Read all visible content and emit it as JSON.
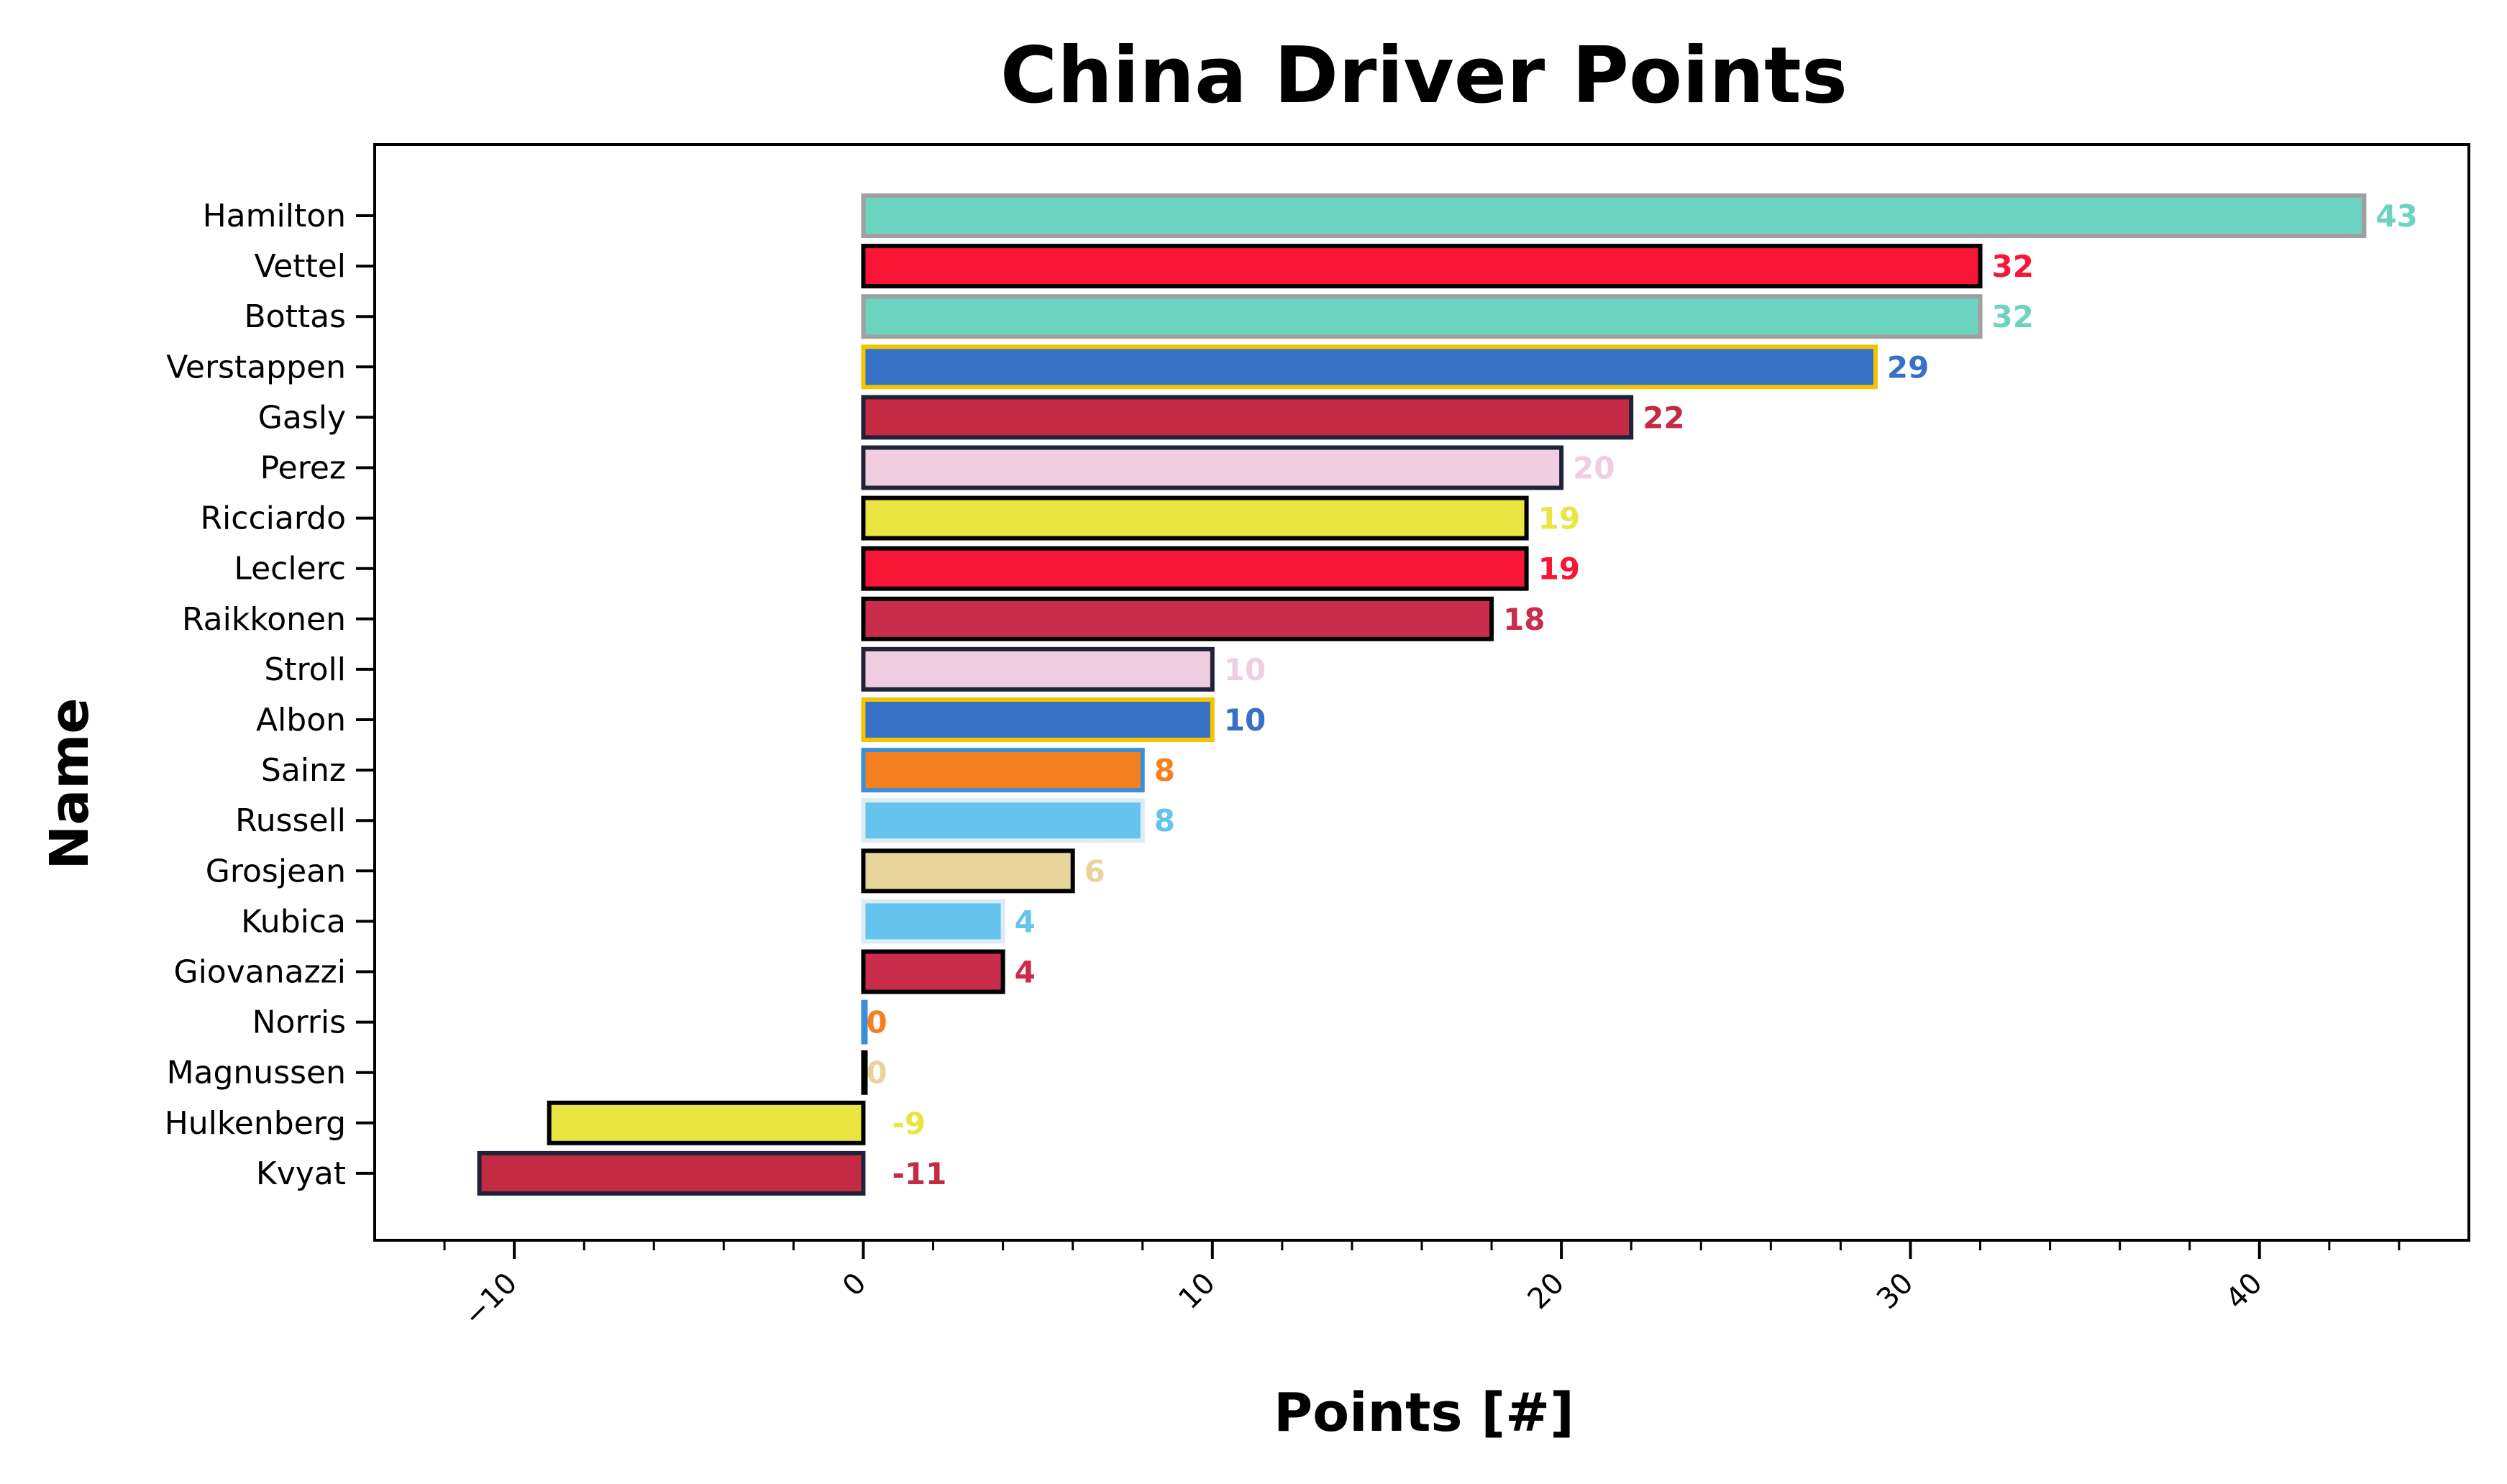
{
  "chart_data": {
    "type": "bar",
    "orientation": "horizontal",
    "title": "China Driver Points",
    "xlabel": "Points [#]",
    "ylabel": "Name",
    "xlim": [
      -14,
      46
    ],
    "xticks": [
      -10,
      0,
      10,
      20,
      30,
      40
    ],
    "xtick_labels": [
      "−10",
      "0",
      "10",
      "20",
      "30",
      "40"
    ],
    "grid": false,
    "categories": [
      "Hamilton",
      "Vettel",
      "Bottas",
      "Verstappen",
      "Gasly",
      "Perez",
      "Ricciardo",
      "Leclerc",
      "Raikkonen",
      "Stroll",
      "Albon",
      "Sainz",
      "Russell",
      "Grosjean",
      "Kubica",
      "Giovanazzi",
      "Norris",
      "Magnussen",
      "Hulkenberg",
      "Kvyat"
    ],
    "values": [
      43,
      32,
      32,
      29,
      22,
      20,
      19,
      19,
      18,
      10,
      10,
      8,
      8,
      6,
      4,
      4,
      0,
      0,
      -9,
      -11
    ],
    "value_labels": [
      "43",
      "32",
      "32",
      "29",
      "22",
      "20",
      "19",
      "19",
      "18",
      "10",
      "10",
      "8",
      "8",
      "6",
      "4",
      "4",
      "0",
      "0",
      "-9",
      "-11"
    ],
    "fill_colors": [
      "#6cd3bf",
      "#f91536",
      "#6cd3bf",
      "#3671c6",
      "#c42a44",
      "#f0cde1",
      "#eae541",
      "#f91536",
      "#c92d4b",
      "#f0cde1",
      "#3671c6",
      "#f58020",
      "#64c4ee",
      "#e8d59b",
      "#64c4ee",
      "#c92d4b",
      "#f58020",
      "#e8d59b",
      "#eae541",
      "#c42a44"
    ],
    "edge_colors": [
      "#a0a0a0",
      "#000000",
      "#a0a0a0",
      "#f5c400",
      "#1e2338",
      "#1e2338",
      "#000000",
      "#000000",
      "#000000",
      "#1e2338",
      "#f5c400",
      "#3a8fdb",
      "#dcecf5",
      "#000000",
      "#dcecf5",
      "#000000",
      "#3a8fdb",
      "#000000",
      "#000000",
      "#1e2338"
    ],
    "label_colors": [
      "#6cd3bf",
      "#f91536",
      "#6cd3bf",
      "#3671c6",
      "#c42a44",
      "#f0cde1",
      "#eae541",
      "#f91536",
      "#c92d4b",
      "#f0cde1",
      "#3671c6",
      "#f58020",
      "#64c4ee",
      "#e8d59b",
      "#64c4ee",
      "#c92d4b",
      "#f58020",
      "#e8d59b",
      "#eae541",
      "#c42a44"
    ]
  }
}
